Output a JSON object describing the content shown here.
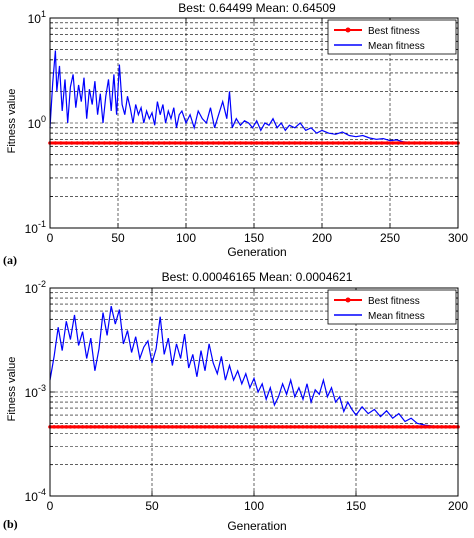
{
  "colors": {
    "best": "#ff0000",
    "mean": "#0000ff",
    "grid": "#000000",
    "axes": "#000000",
    "background": "#ffffff"
  },
  "chart_data": [
    {
      "panel_label": "(a)",
      "type": "line",
      "title": "Best: 0.64499 Mean: 0.64509",
      "xlabel": "Generation",
      "ylabel": "Fitness value",
      "xlim": [
        0,
        300
      ],
      "ylim": [
        0.1,
        10
      ],
      "yscale": "log",
      "grid": true,
      "legend_position": "top-right",
      "x_ticks": [
        0,
        50,
        100,
        150,
        200,
        250,
        300
      ],
      "x_tick_labels": [
        "0",
        "50",
        "100",
        "150",
        "200",
        "250",
        "300"
      ],
      "y_tick_labels": [
        {
          "base": "10",
          "exp": "-1",
          "value": 0.1
        },
        {
          "base": "10",
          "exp": "0",
          "value": 1
        },
        {
          "base": "10",
          "exp": "1",
          "value": 10
        }
      ],
      "series": [
        {
          "name": "Best fitness",
          "color": "#ff0000",
          "style": "line-with-dot-markers",
          "x": [
            0,
            300
          ],
          "y": [
            0.645,
            0.645
          ]
        },
        {
          "name": "Mean fitness",
          "color": "#0000ff",
          "style": "line",
          "x": [
            0,
            2,
            4,
            5,
            7,
            9,
            11,
            13,
            15,
            17,
            19,
            21,
            23,
            25,
            27,
            29,
            31,
            33,
            35,
            37,
            39,
            41,
            43,
            45,
            47,
            49,
            51,
            53,
            55,
            57,
            59,
            61,
            63,
            65,
            67,
            69,
            71,
            73,
            75,
            77,
            79,
            81,
            83,
            85,
            87,
            89,
            91,
            93,
            95,
            97,
            100,
            103,
            106,
            109,
            112,
            115,
            118,
            121,
            124,
            127,
            130,
            132,
            134,
            137,
            140,
            143,
            146,
            149,
            152,
            155,
            158,
            161,
            164,
            167,
            170,
            173,
            176,
            180,
            184,
            188,
            192,
            196,
            200,
            205,
            210,
            215,
            220,
            225,
            230,
            235,
            240,
            245,
            250,
            255,
            260,
            270,
            280,
            290,
            300
          ],
          "y": [
            0.9,
            2.4,
            4.9,
            2.0,
            3.5,
            1.3,
            2.6,
            1.0,
            2.2,
            2.9,
            1.4,
            2.3,
            1.6,
            2.7,
            1.1,
            2.1,
            1.5,
            2.5,
            1.2,
            1.9,
            1.0,
            1.8,
            2.6,
            1.3,
            2.9,
            1.2,
            3.6,
            1.5,
            1.2,
            1.8,
            1.4,
            1.0,
            1.5,
            1.2,
            1.4,
            1.0,
            1.3,
            1.1,
            1.25,
            0.95,
            1.6,
            1.2,
            1.5,
            1.0,
            1.3,
            1.1,
            1.4,
            0.9,
            1.2,
            1.3,
            1.0,
            1.2,
            0.9,
            1.3,
            1.1,
            1.0,
            1.4,
            0.9,
            1.2,
            1.6,
            1.1,
            2.0,
            0.9,
            1.1,
            0.95,
            1.05,
            1.0,
            0.9,
            1.05,
            0.85,
            1.0,
            0.95,
            1.1,
            0.9,
            1.0,
            0.85,
            0.95,
            0.9,
            1.0,
            0.85,
            0.9,
            0.8,
            0.85,
            0.8,
            0.78,
            0.82,
            0.76,
            0.74,
            0.76,
            0.72,
            0.7,
            0.71,
            0.68,
            0.69,
            0.66,
            0.65,
            0.655,
            0.648,
            0.645
          ]
        }
      ]
    },
    {
      "panel_label": "(b)",
      "type": "line",
      "title": "Best: 0.00046165 Mean: 0.0004621",
      "xlabel": "Generation",
      "ylabel": "Fitness value",
      "xlim": [
        0,
        200
      ],
      "ylim": [
        0.0001,
        0.01
      ],
      "yscale": "log",
      "grid": true,
      "legend_position": "top-right",
      "x_ticks": [
        0,
        50,
        100,
        150,
        200
      ],
      "x_tick_labels": [
        "0",
        "50",
        "100",
        "150",
        "200"
      ],
      "y_tick_labels": [
        {
          "base": "10",
          "exp": "-4",
          "value": 0.0001
        },
        {
          "base": "10",
          "exp": "-3",
          "value": 0.001
        },
        {
          "base": "10",
          "exp": "-2",
          "value": 0.01
        }
      ],
      "series": [
        {
          "name": "Best fitness",
          "color": "#ff0000",
          "style": "line-with-dot-markers",
          "x": [
            0,
            200
          ],
          "y": [
            0.000462,
            0.000462
          ]
        },
        {
          "name": "Mean fitness",
          "color": "#0000ff",
          "style": "line",
          "x": [
            0,
            2,
            4,
            6,
            8,
            10,
            12,
            14,
            16,
            18,
            20,
            22,
            24,
            26,
            28,
            30,
            32,
            34,
            36,
            38,
            40,
            42,
            44,
            46,
            48,
            50,
            52,
            54,
            56,
            58,
            60,
            62,
            64,
            66,
            68,
            70,
            72,
            74,
            76,
            78,
            80,
            82,
            84,
            86,
            88,
            90,
            92,
            94,
            96,
            98,
            100,
            102,
            104,
            106,
            108,
            110,
            112,
            114,
            116,
            118,
            120,
            122,
            124,
            126,
            128,
            130,
            132,
            134,
            136,
            138,
            140,
            142,
            144,
            146,
            148,
            150,
            153,
            156,
            159,
            162,
            165,
            168,
            171,
            174,
            177,
            180,
            184,
            188,
            192,
            196,
            200
          ],
          "y": [
            0.0013,
            0.0022,
            0.0042,
            0.0025,
            0.0048,
            0.0032,
            0.0055,
            0.0028,
            0.0038,
            0.0021,
            0.0033,
            0.0016,
            0.0026,
            0.0058,
            0.0035,
            0.0067,
            0.0045,
            0.0062,
            0.0029,
            0.0039,
            0.0024,
            0.0034,
            0.0021,
            0.0027,
            0.0031,
            0.0019,
            0.0026,
            0.0053,
            0.0023,
            0.0033,
            0.0018,
            0.0029,
            0.0021,
            0.0036,
            0.0017,
            0.0023,
            0.0014,
            0.0025,
            0.0016,
            0.0029,
            0.0019,
            0.0015,
            0.0022,
            0.0013,
            0.0018,
            0.0013,
            0.0016,
            0.0012,
            0.0015,
            0.0011,
            0.00135,
            0.001,
            0.0012,
            0.00085,
            0.0011,
            0.00075,
            0.0009,
            0.0012,
            0.00095,
            0.0013,
            0.0009,
            0.0011,
            0.00085,
            0.0012,
            0.0008,
            0.00105,
            0.00095,
            0.0013,
            0.0009,
            0.0011,
            0.0008,
            0.0009,
            0.00065,
            0.0008,
            0.00068,
            0.0006,
            0.00072,
            0.00062,
            0.00068,
            0.00058,
            0.00066,
            0.00056,
            0.00062,
            0.00052,
            0.00056,
            0.0005,
            0.00048,
            0.00047,
            0.000465,
            0.000463,
            0.000462
          ]
        }
      ]
    }
  ]
}
